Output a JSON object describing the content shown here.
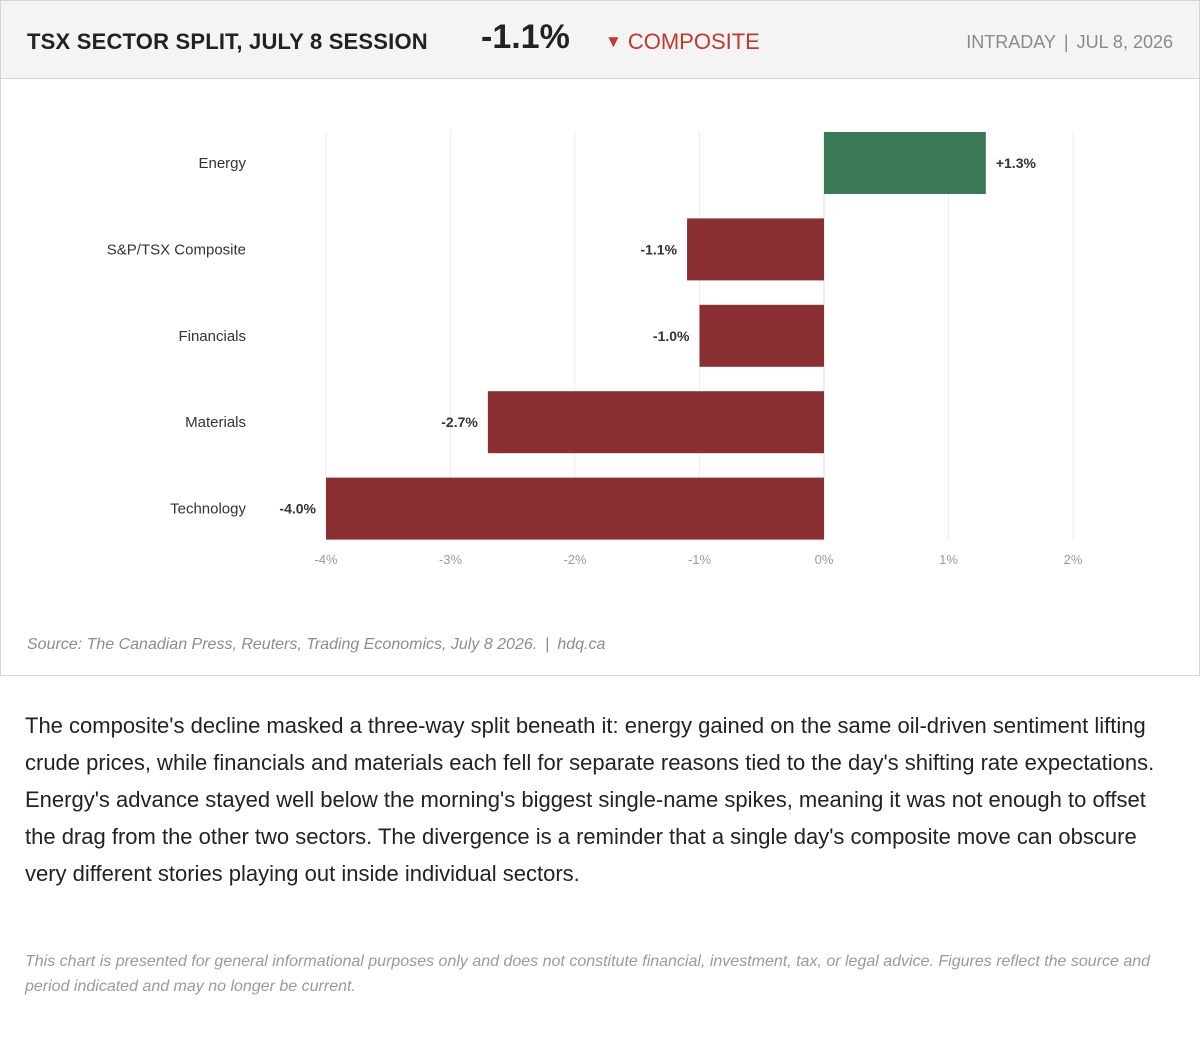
{
  "header": {
    "title": "TSX SECTOR SPLIT, JULY 8 SESSION",
    "change": "-1.1%",
    "indicator_symbol": "▼",
    "indicator_label": "COMPOSITE",
    "meta_mode": "INTRADAY",
    "meta_separator": "|",
    "meta_date": "JUL 8, 2026"
  },
  "colors": {
    "positive": "#3a7a56",
    "negative": "#8b3032",
    "indicator": "#c0392b"
  },
  "chart_data": {
    "type": "bar",
    "orientation": "horizontal",
    "categories": [
      "Energy",
      "S&P/TSX Composite",
      "Financials",
      "Materials",
      "Technology"
    ],
    "values": [
      1.3,
      -1.1,
      -1.0,
      -2.7,
      -4.0
    ],
    "data_labels": [
      "+1.3%",
      "-1.1%",
      "-1.0%",
      "-2.7%",
      "-4.0%"
    ],
    "x_ticks": [
      -4,
      -3,
      -2,
      -1,
      0,
      1,
      2
    ],
    "x_tick_labels": [
      "-4%",
      "-3%",
      "-2%",
      "-1%",
      "0%",
      "1%",
      "2%"
    ],
    "xlim": [
      -4,
      2
    ],
    "grid": true,
    "title": "",
    "xlabel": "",
    "ylabel": ""
  },
  "source": {
    "text": "Source: The Canadian Press, Reuters, Trading Economics, July 8 2026.",
    "separator": "|",
    "site": "hdq.ca"
  },
  "commentary": "The composite's decline masked a three-way split beneath it: energy gained on the same oil-driven sentiment lifting crude prices, while financials and materials each fell for separate reasons tied to the day's shifting rate expectations. Energy's advance stayed well below the morning's biggest single-name spikes, meaning it was not enough to offset the drag from the other two sectors. The divergence is a reminder that a single day's composite move can obscure very different stories playing out inside individual sectors.",
  "disclaimer": "This chart is presented for general informational purposes only and does not constitute financial, investment, tax, or legal advice. Figures reflect the source and period indicated and may no longer be current."
}
